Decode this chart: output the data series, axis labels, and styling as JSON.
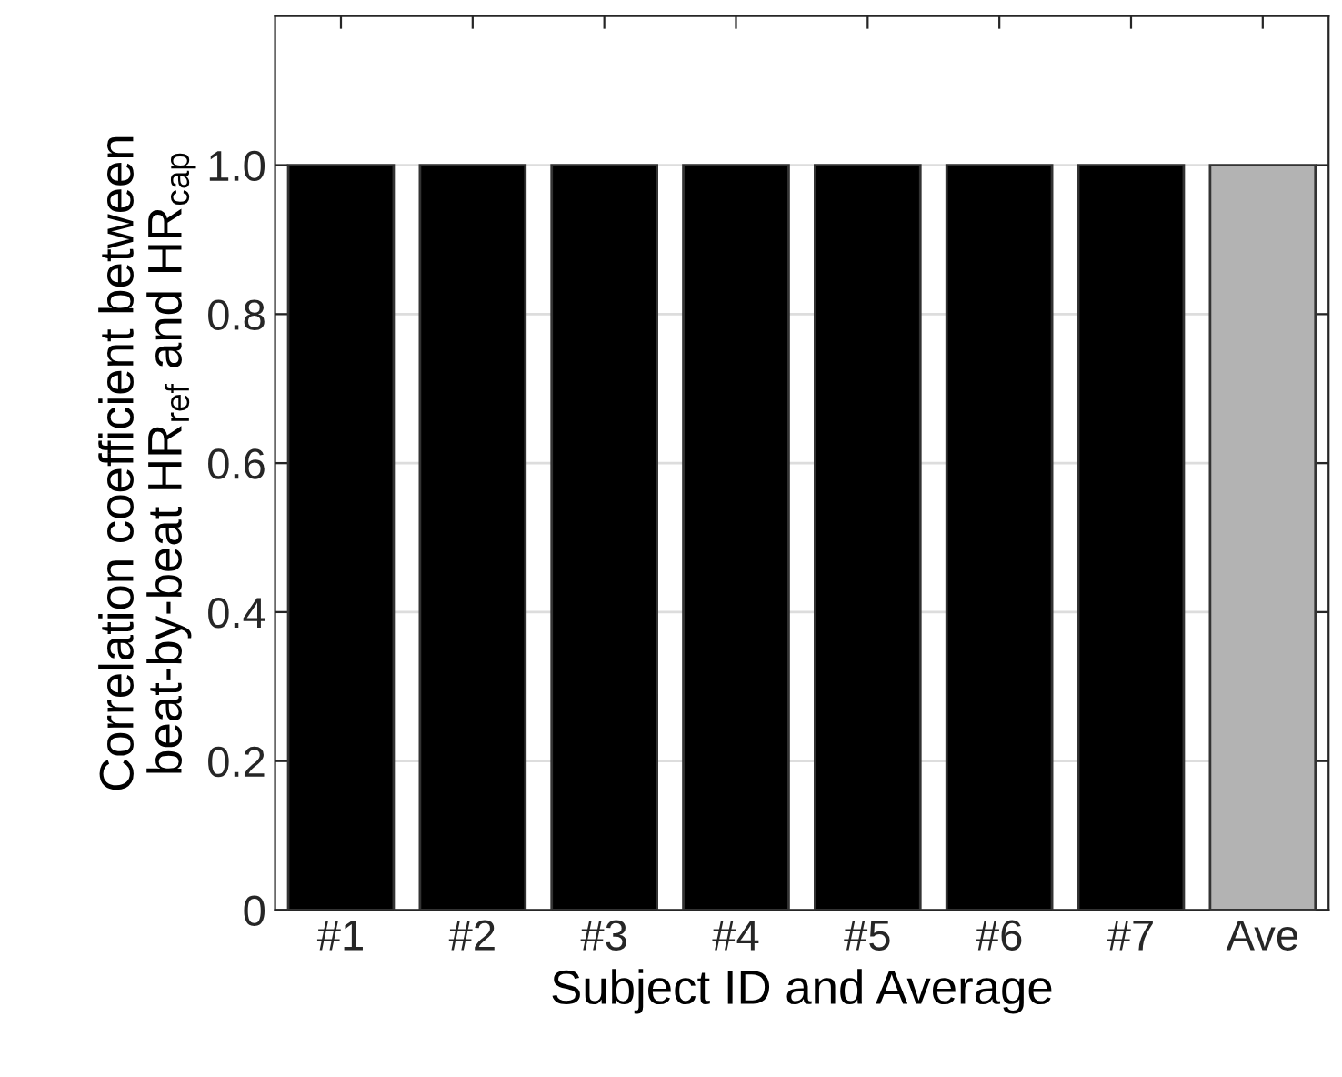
{
  "chart_data": {
    "type": "bar",
    "xlabel": "Subject ID and Average",
    "ylabel": "Correlation coefficient between\nbeat-by-beat HR$_{ref}$ and HR$_{cap}$",
    "categories": [
      "#1",
      "#2",
      "#3",
      "#4",
      "#5",
      "#6",
      "#7",
      "Ave"
    ],
    "values": [
      1.0,
      1.0,
      1.0,
      1.0,
      1.0,
      1.0,
      1.0,
      1.0
    ],
    "colors": [
      "#000000",
      "#000000",
      "#000000",
      "#000000",
      "#000000",
      "#000000",
      "#000000",
      "#b3b3b3"
    ],
    "ylim": [
      0,
      1.2
    ],
    "yticks": [
      0,
      0.2,
      0.4,
      0.6,
      0.8,
      {
        "value": 1,
        "label": "1.0"
      }
    ],
    "grid": "y"
  }
}
